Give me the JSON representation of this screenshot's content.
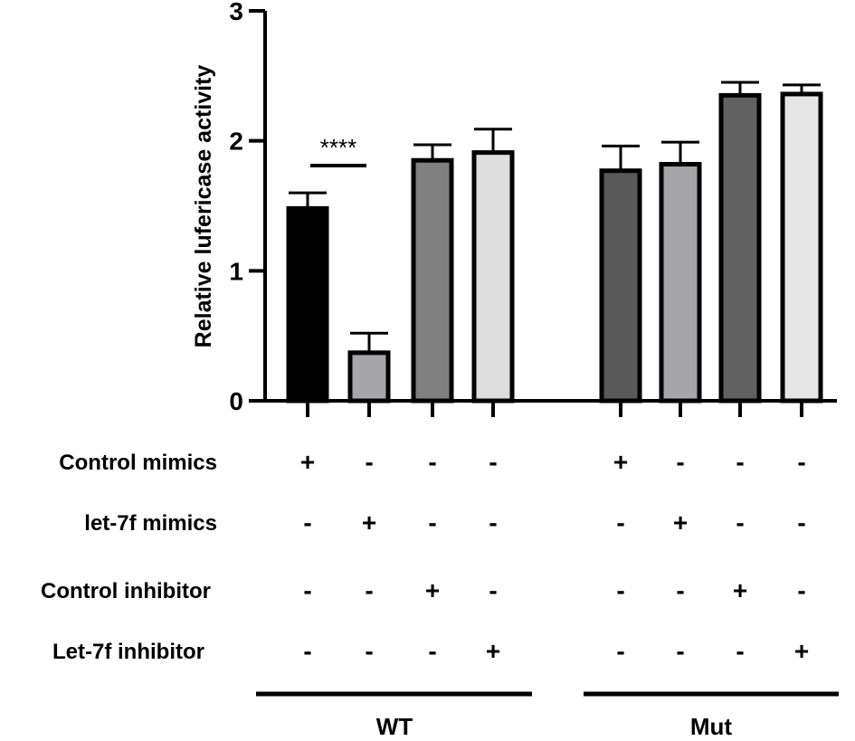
{
  "chart_data": {
    "type": "bar",
    "ylabel": "Relative lufericase activity",
    "ylim": [
      0,
      3
    ],
    "yticks": [
      "0",
      "1",
      "2",
      "3"
    ],
    "groups": [
      "WT",
      "Mut"
    ],
    "bars": [
      {
        "group": "WT",
        "condition": "Control mimics",
        "value": 1.48,
        "error": 0.12,
        "color": "#000000"
      },
      {
        "group": "WT",
        "condition": "let-7f mimics",
        "value": 0.37,
        "error": 0.15,
        "color": "#a6a6a8"
      },
      {
        "group": "WT",
        "condition": "Control inhibitor",
        "value": 1.85,
        "error": 0.12,
        "color": "#808080"
      },
      {
        "group": "WT",
        "condition": "Let-7f inhibitor",
        "value": 1.91,
        "error": 0.18,
        "color": "#dedede"
      },
      {
        "group": "Mut",
        "condition": "Control mimics",
        "value": 1.77,
        "error": 0.19,
        "color": "#595959"
      },
      {
        "group": "Mut",
        "condition": "let-7f mimics",
        "value": 1.82,
        "error": 0.17,
        "color": "#a6a6a8"
      },
      {
        "group": "Mut",
        "condition": "Control inhibitor",
        "value": 2.35,
        "error": 0.1,
        "color": "#606060"
      },
      {
        "group": "Mut",
        "condition": "Let-7f inhibitor",
        "value": 2.36,
        "error": 0.07,
        "color": "#e6e6e6"
      }
    ],
    "significance": {
      "label": "****",
      "between": [
        0,
        1
      ],
      "level": 1.81
    }
  },
  "design_table": {
    "rows": [
      {
        "label": "Control mimics",
        "signs": [
          "+",
          "-",
          "-",
          "-",
          "+",
          "-",
          "-",
          "-"
        ]
      },
      {
        "label": "let-7f mimics",
        "signs": [
          "-",
          "+",
          "-",
          "-",
          "-",
          "+",
          "-",
          "-"
        ]
      },
      {
        "label": "Control inhibitor",
        "signs": [
          "-",
          "-",
          "+",
          "-",
          "-",
          "-",
          "+",
          "-"
        ]
      },
      {
        "label": "Let-7f inhibitor",
        "signs": [
          "-",
          "-",
          "-",
          "+",
          "-",
          "-",
          "-",
          "+"
        ]
      }
    ]
  }
}
